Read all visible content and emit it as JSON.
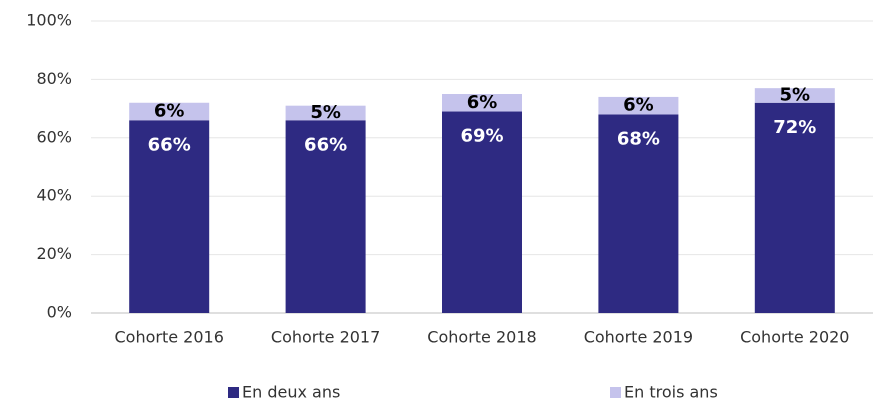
{
  "chart_data": {
    "type": "stacked_bar",
    "categories": [
      "Cohorte 2016",
      "Cohorte 2017",
      "Cohorte 2018",
      "Cohorte 2019",
      "Cohorte 2020"
    ],
    "series": [
      {
        "name": "En deux ans",
        "color": "#2e2a82",
        "values": [
          66,
          66,
          69,
          68,
          72
        ],
        "value_labels": [
          "66%",
          "66%",
          "69%",
          "68%",
          "72%"
        ],
        "label_color": "#ffffff"
      },
      {
        "name": "En trois ans",
        "color": "#c5c3ec",
        "values": [
          6,
          5,
          6,
          6,
          5
        ],
        "value_labels": [
          "6%",
          "5%",
          "6%",
          "6%",
          "5%"
        ],
        "label_color": "#000000"
      }
    ],
    "ylim": [
      0,
      100
    ],
    "yticks": [
      {
        "value": 0,
        "label": "0%"
      },
      {
        "value": 20,
        "label": "20%"
      },
      {
        "value": 40,
        "label": "40%"
      },
      {
        "value": 60,
        "label": "60%"
      },
      {
        "value": 80,
        "label": "80%"
      },
      {
        "value": 100,
        "label": "100%"
      }
    ],
    "grid": true,
    "legend": "bottom"
  }
}
